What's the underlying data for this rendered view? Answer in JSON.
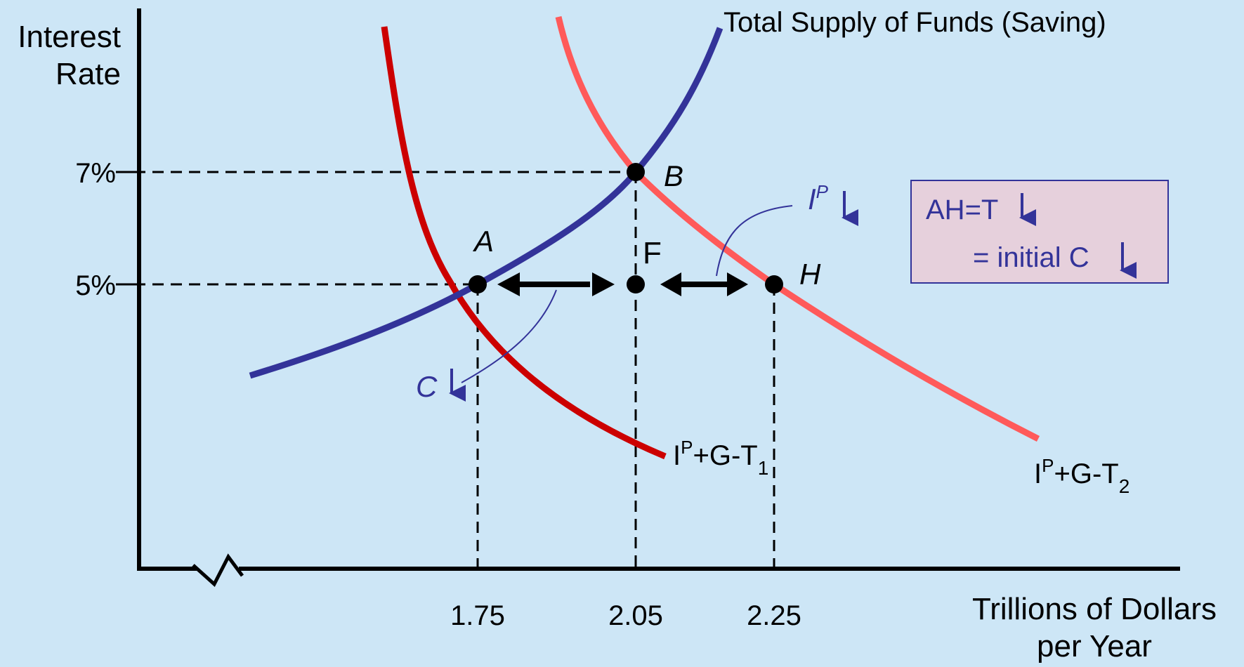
{
  "axes": {
    "y_label_line1": "Interest",
    "y_label_line2": "Rate",
    "x_label_line1": "Trillions of Dollars",
    "x_label_line2": "per Year",
    "y_ticks": [
      "7%",
      "5%"
    ],
    "x_ticks": [
      "1.75",
      "2.05",
      "2.25"
    ]
  },
  "curves": {
    "supply_label": "Total Supply of Funds (Saving)",
    "demand1_label_main": "I",
    "demand1_label_sup": "P",
    "demand1_label_rest": "+G-T",
    "demand1_label_sub": "1",
    "demand2_label_main": "I",
    "demand2_label_sup": "P",
    "demand2_label_rest": "+G-T",
    "demand2_label_sub": "2"
  },
  "points": {
    "A": "A",
    "B": "B",
    "F": "F",
    "H": "H"
  },
  "annotations": {
    "c_label": "C",
    "ip_label": "I",
    "ip_sup": "P",
    "box_line1": "AH=T",
    "box_line2": "= initial C"
  },
  "colors": {
    "background": "#cde6f6",
    "supply_curve": "#333399",
    "demand1_curve": "#cc0000",
    "demand2_curve": "#ff5a5a",
    "box_fill": "#e6d0dc",
    "box_border": "#333399"
  }
}
